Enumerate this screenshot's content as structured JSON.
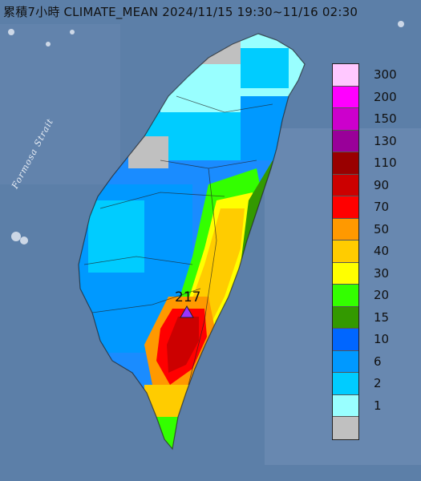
{
  "title": "累積7小時 CLIMATE_MEAN 2024/11/15 19:30~11/16 02:30",
  "strait_label": "Formosa Strait",
  "max_station_value": "217",
  "legend": {
    "values": [
      "300",
      "200",
      "150",
      "130",
      "110",
      "90",
      "70",
      "50",
      "40",
      "30",
      "20",
      "15",
      "10",
      "6",
      "2",
      "1"
    ],
    "colors": [
      "#ffc8ff",
      "#ff00ff",
      "#cc00cc",
      "#990099",
      "#990000",
      "#cc0000",
      "#ff0000",
      "#ff9900",
      "#ffcc00",
      "#ffff00",
      "#33ff00",
      "#339900",
      "#0066ff",
      "#0099ff",
      "#00ccff",
      "#99ffff",
      "#c0c0c0"
    ]
  },
  "colors": {
    "ocean": "#5c7fa8",
    "max_marker": "#9933ff"
  }
}
